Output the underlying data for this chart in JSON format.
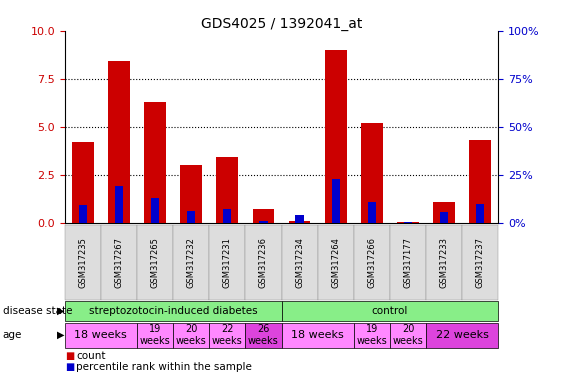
{
  "title": "GDS4025 / 1392041_at",
  "samples": [
    "GSM317235",
    "GSM317267",
    "GSM317265",
    "GSM317232",
    "GSM317231",
    "GSM317236",
    "GSM317234",
    "GSM317264",
    "GSM317266",
    "GSM317177",
    "GSM317233",
    "GSM317237"
  ],
  "count_values": [
    4.2,
    8.4,
    6.3,
    3.0,
    3.4,
    0.7,
    0.1,
    9.0,
    5.2,
    0.05,
    1.1,
    4.3
  ],
  "percentile_values": [
    0.9,
    1.9,
    1.3,
    0.6,
    0.7,
    0.1,
    0.4,
    2.3,
    1.1,
    0.05,
    0.55,
    1.0
  ],
  "ylim": [
    0,
    10
  ],
  "yticks": [
    0,
    2.5,
    5.0,
    7.5,
    10
  ],
  "y2tick_labels": [
    "0%",
    "25%",
    "50%",
    "75%",
    "100%"
  ],
  "bar_color": "#CC0000",
  "percentile_color": "#0000CC",
  "bar_width": 0.6,
  "background_color": "#FFFFFF",
  "tick_label_color": "#CC0000",
  "right_tick_color": "#0000CC",
  "ds_groups": [
    {
      "label": "streptozotocin-induced diabetes",
      "start": 0,
      "end": 6,
      "color": "#88EE88"
    },
    {
      "label": "control",
      "start": 6,
      "end": 12,
      "color": "#88EE88"
    }
  ],
  "age_groups": [
    {
      "label": "18 weeks",
      "start": 0,
      "end": 2,
      "color": "#FF88FF",
      "fontsize": 8,
      "two_line": false
    },
    {
      "label": "19\nweeks",
      "start": 2,
      "end": 3,
      "color": "#FF88FF",
      "fontsize": 7,
      "two_line": true
    },
    {
      "label": "20\nweeks",
      "start": 3,
      "end": 4,
      "color": "#FF88FF",
      "fontsize": 7,
      "two_line": true
    },
    {
      "label": "22\nweeks",
      "start": 4,
      "end": 5,
      "color": "#FF88FF",
      "fontsize": 7,
      "two_line": true
    },
    {
      "label": "26\nweeks",
      "start": 5,
      "end": 6,
      "color": "#DD44DD",
      "fontsize": 7,
      "two_line": true
    },
    {
      "label": "18 weeks",
      "start": 6,
      "end": 8,
      "color": "#FF88FF",
      "fontsize": 8,
      "two_line": false
    },
    {
      "label": "19\nweeks",
      "start": 8,
      "end": 9,
      "color": "#FF88FF",
      "fontsize": 7,
      "two_line": true
    },
    {
      "label": "20\nweeks",
      "start": 9,
      "end": 10,
      "color": "#FF88FF",
      "fontsize": 7,
      "two_line": true
    },
    {
      "label": "22 weeks",
      "start": 10,
      "end": 12,
      "color": "#DD44DD",
      "fontsize": 8,
      "two_line": false
    }
  ]
}
